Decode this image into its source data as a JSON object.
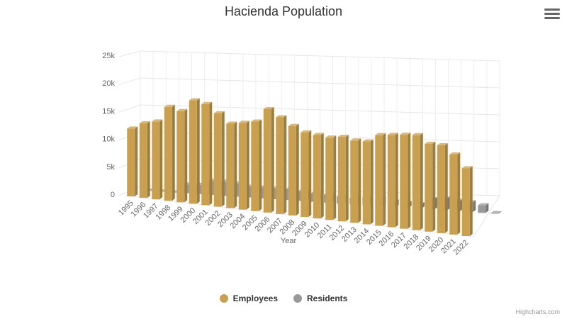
{
  "page": {
    "title": "Hacienda Population",
    "credits": "Highcharts.com",
    "menu_icon": "hamburger-menu-icon"
  },
  "chart_data": {
    "type": "bar",
    "style": "3d-column",
    "title": "Hacienda Population",
    "xlabel": "Year",
    "ylabel": "",
    "ylim": [
      0,
      25000
    ],
    "yticks": [
      "0",
      "5k",
      "10k",
      "15k",
      "20k",
      "25k"
    ],
    "grid": true,
    "legend_position": "bottom-center",
    "categories": [
      "1995",
      "1996",
      "1997",
      "1998",
      "1999",
      "2000",
      "2001",
      "2002",
      "2003",
      "2004",
      "2005",
      "2006",
      "2007",
      "2008",
      "2009",
      "2010",
      "2011",
      "2012",
      "2013",
      "2014",
      "2015",
      "2016",
      "2017",
      "2018",
      "2019",
      "2020",
      "2021",
      "2022"
    ],
    "series": [
      {
        "name": "Employees",
        "color": "#c8a050",
        "values": [
          12200,
          13400,
          14000,
          16900,
          16400,
          18600,
          18200,
          16800,
          15200,
          15600,
          16100,
          18600,
          17400,
          16100,
          15200,
          15000,
          14800,
          15200,
          14800,
          14900,
          16300,
          16600,
          16900,
          17100,
          15800,
          15800,
          14400,
          12200
        ]
      },
      {
        "name": "Residents",
        "color": "#999999",
        "values": [
          0,
          0,
          0,
          1600,
          1700,
          2600,
          2600,
          2400,
          2000,
          2000,
          2000,
          2000,
          1800,
          1600,
          1500,
          1300,
          1200,
          1500,
          1400,
          1000,
          900,
          800,
          1900,
          2200,
          1900,
          1800,
          1400,
          100
        ]
      }
    ]
  }
}
